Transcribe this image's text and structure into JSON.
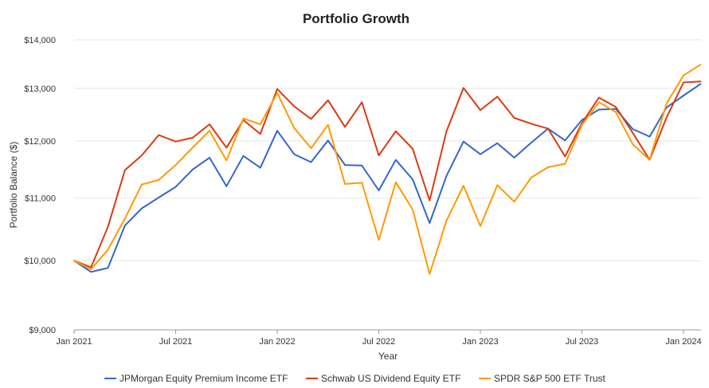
{
  "chart_data": {
    "type": "line",
    "title": "Portfolio Growth",
    "xlabel": "Year",
    "ylabel": "Portfolio Balance ($)",
    "y_scale": "log",
    "ylim": [
      9000,
      14000
    ],
    "y_ticks": [
      9000,
      10000,
      11000,
      12000,
      13000,
      14000
    ],
    "y_tick_labels": [
      "$9,000",
      "$10,000",
      "$11,000",
      "$12,000",
      "$13,000",
      "$14,000"
    ],
    "x_ticks": [
      "2021-01",
      "2021-07",
      "2022-01",
      "2022-07",
      "2023-01",
      "2023-07",
      "2024-01"
    ],
    "x_tick_labels": [
      "Jan 2021",
      "Jul 2021",
      "Jan 2022",
      "Jul 2022",
      "Jan 2023",
      "Jul 2023",
      "Jan 2024"
    ],
    "grid": true,
    "legend_position": "bottom",
    "x": [
      "2021-01",
      "2021-02",
      "2021-03",
      "2021-04",
      "2021-05",
      "2021-06",
      "2021-07",
      "2021-08",
      "2021-09",
      "2021-10",
      "2021-11",
      "2021-12",
      "2022-01",
      "2022-02",
      "2022-03",
      "2022-04",
      "2022-05",
      "2022-06",
      "2022-07",
      "2022-08",
      "2022-09",
      "2022-10",
      "2022-11",
      "2022-12",
      "2023-01",
      "2023-02",
      "2023-03",
      "2023-04",
      "2023-05",
      "2023-06",
      "2023-07",
      "2023-08",
      "2023-09",
      "2023-10",
      "2023-11",
      "2023-12",
      "2024-01",
      "2024-02"
    ],
    "series": [
      {
        "name": "JPMorgan Equity Premium Income ETF",
        "color": "#3366cc",
        "values": [
          10000,
          9830,
          9890,
          10550,
          10830,
          11010,
          11190,
          11490,
          11700,
          11200,
          11730,
          11520,
          12190,
          11760,
          11620,
          12010,
          11570,
          11560,
          11130,
          11660,
          11320,
          10590,
          11380,
          11990,
          11760,
          11960,
          11700,
          11970,
          12230,
          12010,
          12390,
          12590,
          12600,
          12220,
          12080,
          12630,
          12860,
          13090
        ]
      },
      {
        "name": "Schwab US Dividend Equity ETF",
        "color": "#dc3912",
        "values": [
          10000,
          9900,
          10530,
          11480,
          11740,
          12110,
          11990,
          12060,
          12310,
          11880,
          12390,
          12130,
          12990,
          12650,
          12410,
          12770,
          12260,
          12730,
          11740,
          12180,
          11860,
          10960,
          12180,
          13010,
          12580,
          12840,
          12430,
          12320,
          12230,
          11720,
          12330,
          12820,
          12640,
          12150,
          11660,
          12440,
          13120,
          13140
        ]
      },
      {
        "name": "SPDR S&P 500 ETF Trust",
        "color": "#ff9900",
        "values": [
          10000,
          9870,
          10170,
          10660,
          11230,
          11310,
          11570,
          11880,
          12190,
          11650,
          12420,
          12310,
          12910,
          12240,
          11870,
          12300,
          11240,
          11260,
          10320,
          11270,
          10810,
          9800,
          10630,
          11210,
          10540,
          11220,
          10940,
          11350,
          11530,
          11590,
          12300,
          12730,
          12540,
          11940,
          11660,
          12710,
          13260,
          13480
        ]
      }
    ]
  }
}
